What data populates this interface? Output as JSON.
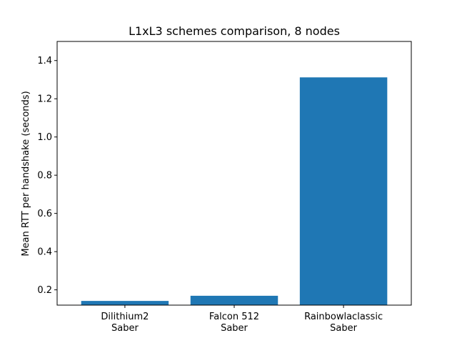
{
  "chart_data": {
    "type": "bar",
    "title": "L1xL3 schemes comparison, 8 nodes",
    "xlabel": "",
    "ylabel": "Mean RTT per handshake (seconds)",
    "categories": [
      [
        "Dilithium2",
        "Saber"
      ],
      [
        "Falcon 512",
        "Saber"
      ],
      [
        "Rainbowlaclassic",
        "Saber"
      ]
    ],
    "values": [
      0.142,
      0.169,
      1.312
    ],
    "ylim": [
      0.12,
      1.5
    ],
    "yticks": [
      0.2,
      0.4,
      0.6,
      0.8,
      1.0,
      1.2,
      1.4
    ],
    "ytick_labels": [
      "0.2",
      "0.4",
      "0.6",
      "0.8",
      "1.0",
      "1.2",
      "1.4"
    ],
    "bar_color": "#1f77b4",
    "grid": false,
    "legend": "none"
  }
}
